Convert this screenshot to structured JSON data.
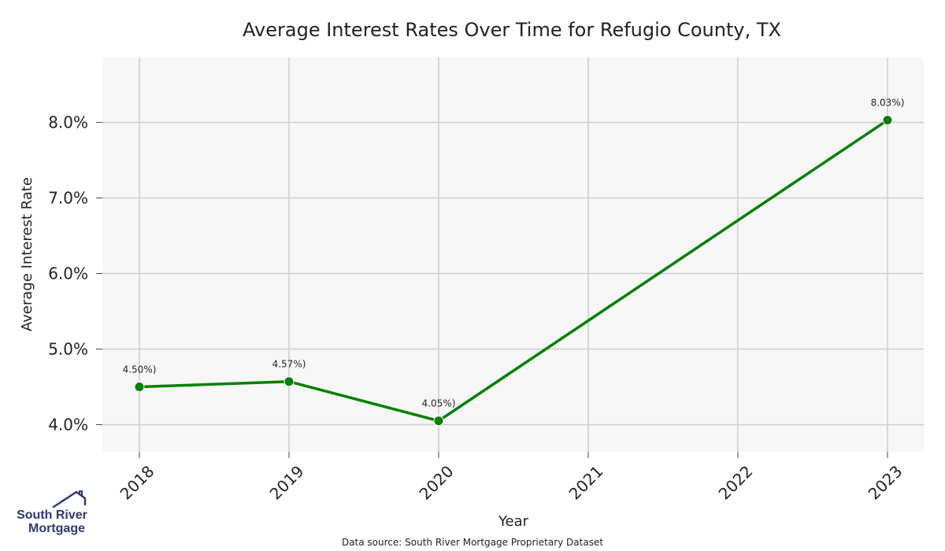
{
  "colors": {
    "line": "#008000",
    "plot_background": "#f7f7f7",
    "grid": "#cccccc",
    "logo": "#2e3a78"
  },
  "chart_data": {
    "type": "line",
    "title": "Average Interest Rates Over Time for Refugio County, TX",
    "xlabel": "Year",
    "ylabel": "Average Interest Rate",
    "categories": [
      "2018",
      "2019",
      "2020",
      "2021",
      "2022",
      "2023"
    ],
    "series": [
      {
        "name": "Average Interest Rate",
        "points": [
          {
            "x": "2018",
            "y": 4.5,
            "label": "4.50%)"
          },
          {
            "x": "2019",
            "y": 4.57,
            "label": "4.57%)"
          },
          {
            "x": "2020",
            "y": 4.05,
            "label": "4.05%)"
          },
          {
            "x": "2023",
            "y": 8.03,
            "label": "8.03%)"
          }
        ]
      }
    ],
    "yticks": [
      {
        "value": 4.0,
        "label": "4.0%"
      },
      {
        "value": 5.0,
        "label": "5.0%"
      },
      {
        "value": 6.0,
        "label": "6.0%"
      },
      {
        "value": 7.0,
        "label": "7.0%"
      },
      {
        "value": 8.0,
        "label": "8.0%"
      }
    ],
    "ylim": [
      3.64,
      8.86
    ],
    "grid": true
  },
  "source": "Data source: South River Mortgage Proprietary Dataset",
  "logo": {
    "line1": "South River",
    "line2": "Mortgage"
  }
}
